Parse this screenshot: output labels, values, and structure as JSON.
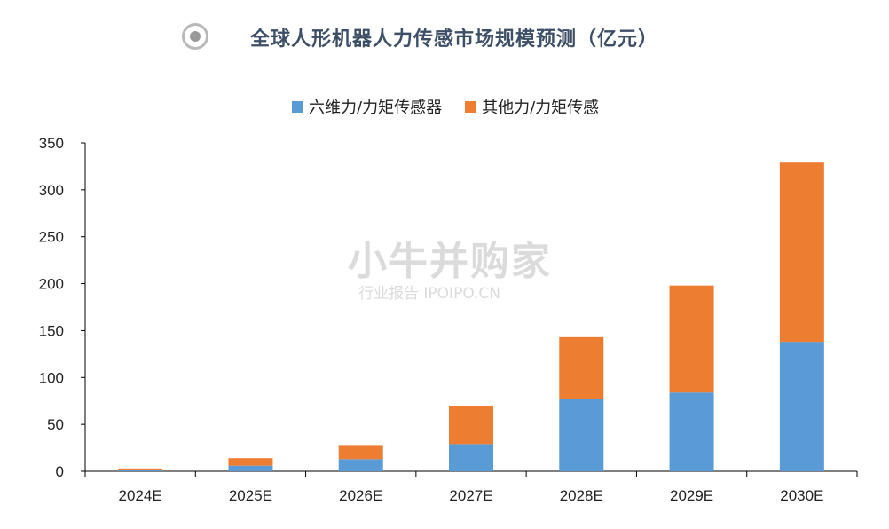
{
  "title": "全球人形机器人力传感市场规模预测（亿元）",
  "watermark": {
    "brand": "小牛并购家",
    "sub": "行业报告 IPOIPO.CN"
  },
  "colors": {
    "series1": "#5b9bd5",
    "series2": "#ed7d31",
    "axis": "#000000",
    "title": "#3d4f66"
  },
  "chart_data": {
    "type": "bar",
    "stacked": true,
    "categories": [
      "2024E",
      "2025E",
      "2026E",
      "2027E",
      "2028E",
      "2029E",
      "2030E"
    ],
    "series": [
      {
        "name": "六维力/力矩传感器",
        "values": [
          1,
          6,
          13,
          29,
          77,
          84,
          138
        ]
      },
      {
        "name": "其他力/力矩传感",
        "values": [
          2,
          8,
          15,
          41,
          66,
          114,
          191
        ]
      }
    ],
    "ylim": [
      0,
      350
    ],
    "yticks": [
      0,
      50,
      100,
      150,
      200,
      250,
      300,
      350
    ],
    "grid": false,
    "legend_position": "top"
  }
}
